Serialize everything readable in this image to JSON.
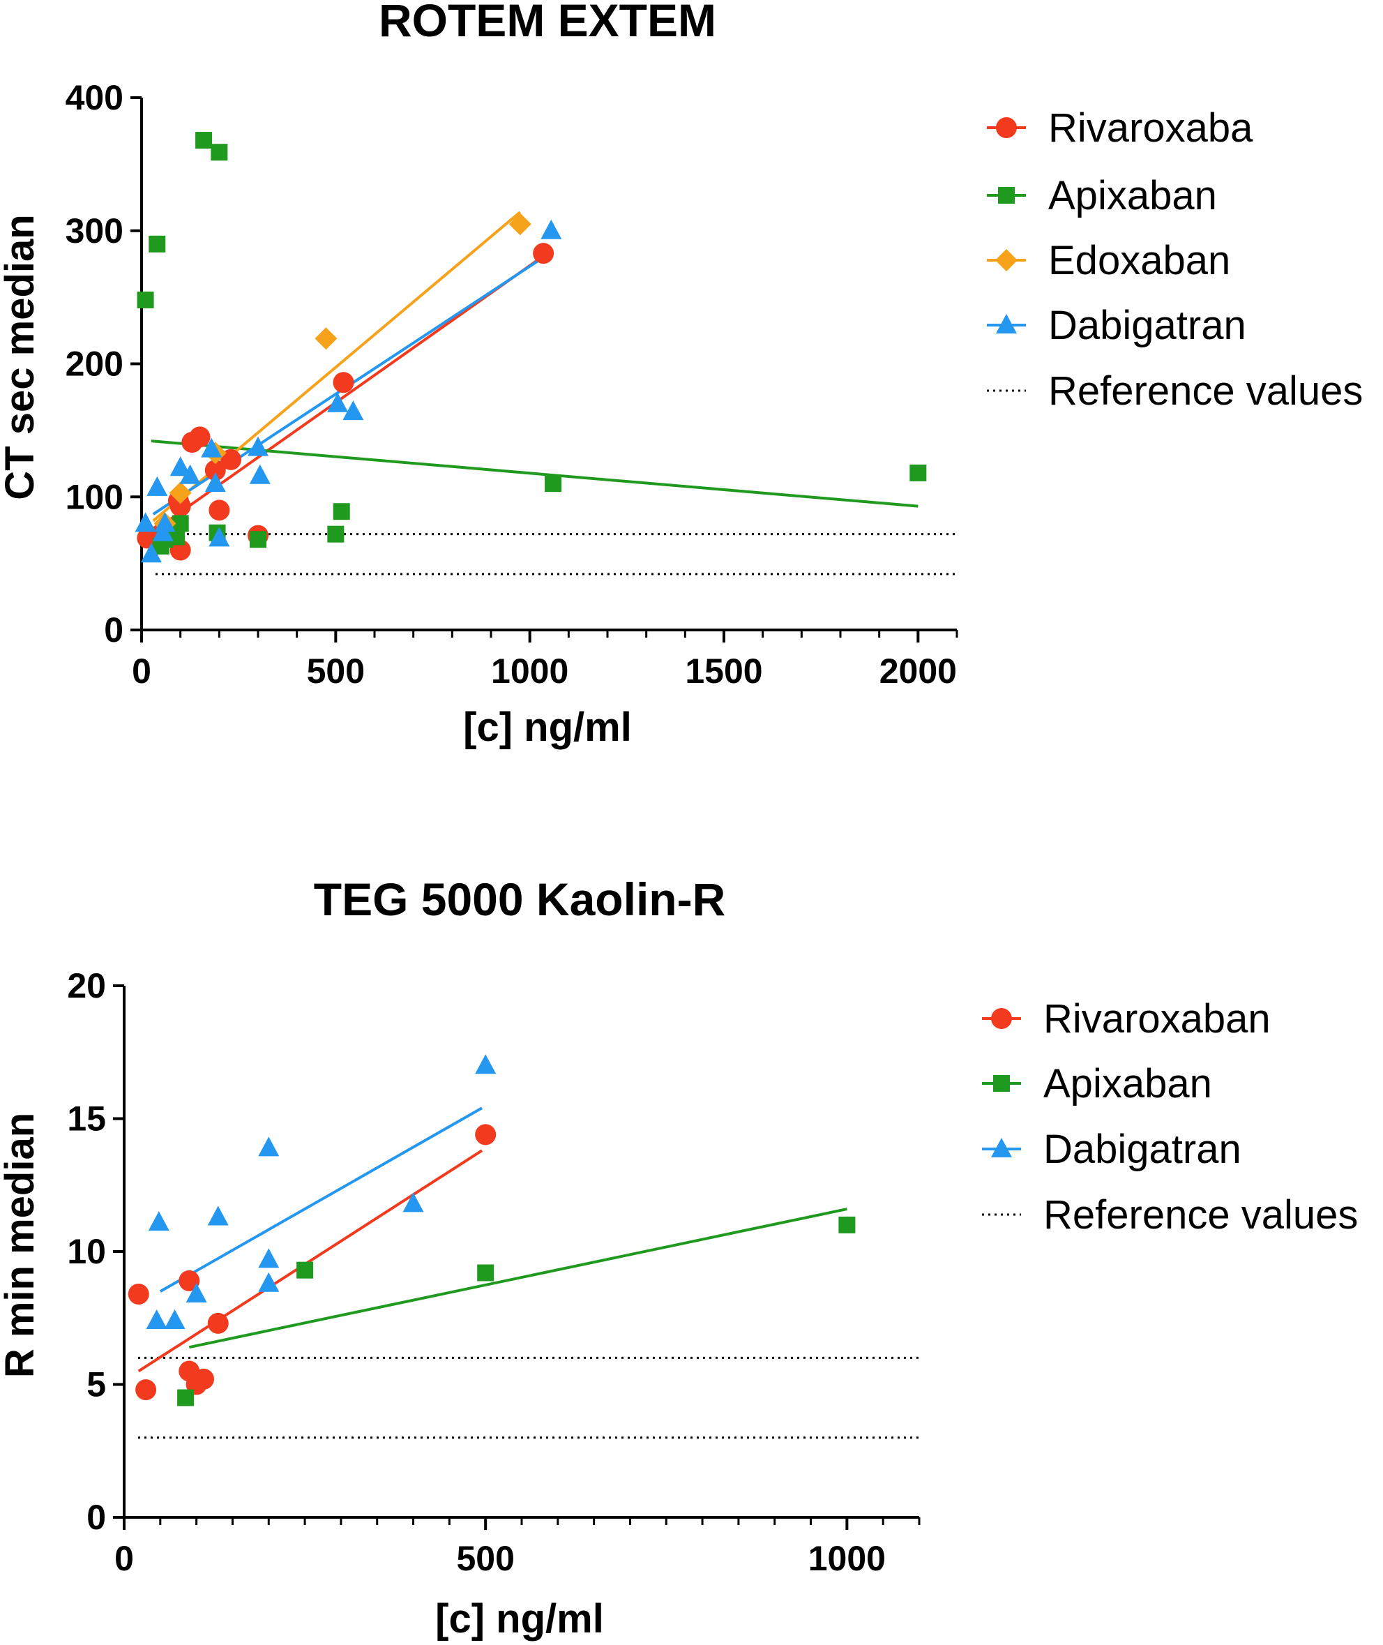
{
  "colors": {
    "rivaroxaban": "#f23a1e",
    "apixaban": "#1f9a1f",
    "edoxaban": "#f7a21b",
    "dabigatran": "#2497f0",
    "reference": "#000000"
  },
  "chart_data": [
    {
      "type": "scatter",
      "title": "ROTEM EXTEM",
      "xlabel": "[c] ng/ml",
      "ylabel": "CT sec median",
      "xlim": [
        0,
        2100
      ],
      "ylim": [
        0,
        400
      ],
      "xticks": [
        0,
        500,
        1000,
        1500,
        2000
      ],
      "xtick_labels": [
        "0",
        "500",
        "1000",
        "1500",
        "2000"
      ],
      "yticks": [
        0,
        100,
        200,
        300,
        400
      ],
      "ytick_labels": [
        "0",
        "100",
        "200",
        "300",
        "400"
      ],
      "grid": false,
      "legend_position": "right",
      "reference_values": [
        72,
        42
      ],
      "reference_label": "Reference values",
      "series": [
        {
          "name": "Rivaroxaba",
          "key": "rivaroxaban",
          "marker": "circle",
          "points": [
            [
              15,
              69
            ],
            [
              30,
              70
            ],
            [
              50,
              72
            ],
            [
              60,
              70
            ],
            [
              95,
              97
            ],
            [
              100,
              60
            ],
            [
              100,
              93
            ],
            [
              130,
              141
            ],
            [
              150,
              145
            ],
            [
              190,
              120
            ],
            [
              200,
              90
            ],
            [
              230,
              128
            ],
            [
              300,
              71
            ],
            [
              520,
              186
            ],
            [
              1035,
              283
            ]
          ],
          "fit": [
            [
              15,
              71
            ],
            [
              1035,
              281
            ]
          ]
        },
        {
          "name": "Apixaban",
          "key": "apixaban",
          "marker": "square",
          "points": [
            [
              10,
              248
            ],
            [
              40,
              290
            ],
            [
              50,
              63
            ],
            [
              60,
              68
            ],
            [
              80,
              72
            ],
            [
              90,
              70
            ],
            [
              100,
              80
            ],
            [
              160,
              368
            ],
            [
              195,
              73
            ],
            [
              200,
              359
            ],
            [
              300,
              68
            ],
            [
              500,
              72
            ],
            [
              515,
              89
            ],
            [
              1060,
              110
            ],
            [
              2000,
              118
            ]
          ],
          "fit": [
            [
              25,
              142
            ],
            [
              2000,
              93
            ]
          ]
        },
        {
          "name": "Edoxaban",
          "key": "edoxaban",
          "marker": "diamond",
          "points": [
            [
              60,
              80
            ],
            [
              100,
              103
            ],
            [
              190,
              133
            ],
            [
              475,
              219
            ],
            [
              975,
              305
            ]
          ],
          "fit": [
            [
              30,
              82
            ],
            [
              975,
              314
            ]
          ]
        },
        {
          "name": "Dabigatran",
          "key": "dabigatran",
          "marker": "triangle",
          "points": [
            [
              10,
              80
            ],
            [
              25,
              57
            ],
            [
              40,
              107
            ],
            [
              55,
              73
            ],
            [
              60,
              80
            ],
            [
              100,
              122
            ],
            [
              125,
              116
            ],
            [
              180,
              136
            ],
            [
              190,
              110
            ],
            [
              200,
              69
            ],
            [
              300,
              137
            ],
            [
              305,
              116
            ],
            [
              505,
              170
            ],
            [
              545,
              164
            ],
            [
              1055,
              300
            ]
          ],
          "fit": [
            [
              30,
              87
            ],
            [
              1035,
              280
            ]
          ]
        }
      ]
    },
    {
      "type": "scatter",
      "title": "TEG 5000 Kaolin-R",
      "xlabel": "[c] ng/ml",
      "ylabel": "R min median",
      "xlim": [
        0,
        1100
      ],
      "ylim": [
        0,
        20
      ],
      "xticks": [
        0,
        500,
        1000
      ],
      "xtick_labels": [
        "0",
        "500",
        "1000"
      ],
      "yticks": [
        0,
        5,
        10,
        15,
        20
      ],
      "ytick_labels": [
        "0",
        "5",
        "10",
        "15",
        "20"
      ],
      "minor_xticks": [
        50,
        100,
        150,
        200,
        250,
        300,
        350,
        400,
        450,
        550,
        600,
        650,
        700,
        750,
        800,
        850,
        900,
        950,
        1050,
        1100
      ],
      "grid": false,
      "legend_position": "right",
      "reference_values": [
        6,
        3
      ],
      "reference_label": "Reference values",
      "series": [
        {
          "name": "Rivaroxaban",
          "key": "rivaroxaban",
          "marker": "circle",
          "points": [
            [
              20,
              8.4
            ],
            [
              30,
              4.8
            ],
            [
              90,
              8.9
            ],
            [
              90,
              5.5
            ],
            [
              100,
              5.0
            ],
            [
              110,
              5.2
            ],
            [
              130,
              7.3
            ],
            [
              500,
              14.4
            ]
          ],
          "fit": [
            [
              20,
              5.5
            ],
            [
              495,
              13.8
            ]
          ]
        },
        {
          "name": "Apixaban",
          "key": "apixaban",
          "marker": "square",
          "points": [
            [
              85,
              4.5
            ],
            [
              250,
              9.3
            ],
            [
              500,
              9.2
            ],
            [
              1000,
              11.0
            ]
          ],
          "fit": [
            [
              90,
              6.4
            ],
            [
              1000,
              11.6
            ]
          ]
        },
        {
          "name": "Dabigatran",
          "key": "dabigatran",
          "marker": "triangle",
          "points": [
            [
              45,
              7.4
            ],
            [
              48,
              11.1
            ],
            [
              70,
              7.4
            ],
            [
              100,
              8.4
            ],
            [
              130,
              11.3
            ],
            [
              200,
              8.8
            ],
            [
              200,
              9.7
            ],
            [
              200,
              13.9
            ],
            [
              400,
              11.8
            ],
            [
              500,
              17.0
            ]
          ],
          "fit": [
            [
              50,
              8.5
            ],
            [
              495,
              15.4
            ]
          ]
        }
      ]
    }
  ]
}
